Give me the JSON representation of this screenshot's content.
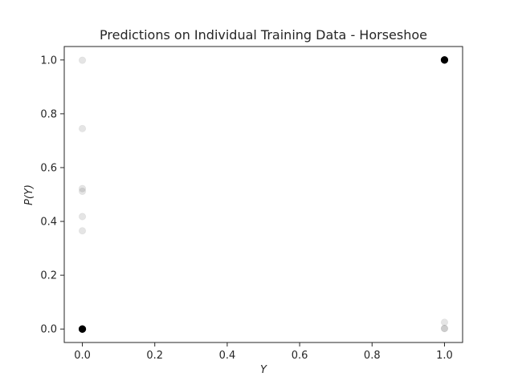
{
  "chart_data": {
    "type": "scatter",
    "title": "Predictions on Individual Training Data - Horseshoe",
    "xlabel": "Y",
    "ylabel": "P(Y)",
    "xlim": [
      -0.05,
      1.05
    ],
    "ylim": [
      -0.05,
      1.05
    ],
    "xticks": [
      "0.0",
      "0.2",
      "0.4",
      "0.6",
      "0.8",
      "1.0"
    ],
    "yticks": [
      "0.0",
      "0.2",
      "0.4",
      "0.6",
      "0.8",
      "1.0"
    ],
    "grid": false,
    "legend": "none",
    "series": [
      {
        "color": "#000000",
        "alpha": 0.1,
        "points": [
          {
            "x": 0,
            "y": 0.0,
            "n": 40
          },
          {
            "x": 0,
            "y": 0.365,
            "n": 1
          },
          {
            "x": 0,
            "y": 0.418,
            "n": 1
          },
          {
            "x": 0,
            "y": 0.512,
            "n": 1
          },
          {
            "x": 0,
            "y": 0.522,
            "n": 1
          },
          {
            "x": 0,
            "y": 0.745,
            "n": 1
          },
          {
            "x": 0,
            "y": 0.999,
            "n": 1
          },
          {
            "x": 1,
            "y": 1.0,
            "n": 40
          },
          {
            "x": 1,
            "y": 0.025,
            "n": 1
          },
          {
            "x": 1,
            "y": 0.002,
            "n": 2
          }
        ]
      }
    ]
  }
}
